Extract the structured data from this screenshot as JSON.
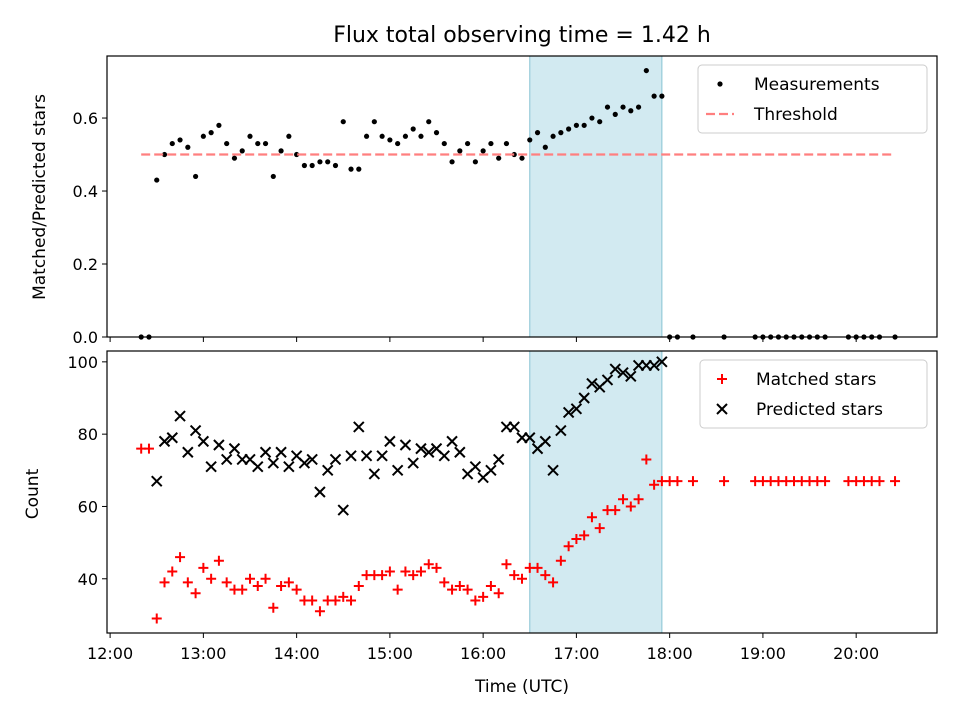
{
  "chart_data": [
    {
      "type": "scatter",
      "title": "Flux total observing time = 1.42 h",
      "xlabel": "",
      "ylabel": "Matched/Predicted stars",
      "xlim": [
        "11:58",
        "20:52"
      ],
      "ylim": [
        0,
        0.77
      ],
      "yticks": [
        0.0,
        0.2,
        0.4,
        0.6
      ],
      "ytick_labels": [
        "0.0",
        "0.2",
        "0.4",
        "0.6"
      ],
      "grid": false,
      "legend_position": "upper right",
      "highlight_span": {
        "start": "16:30",
        "end": "17:55",
        "color": "#add8e6"
      },
      "series": [
        {
          "name": "Measurements",
          "marker": "dot",
          "color": "#000000",
          "points": [
            [
              "12:20",
              0.0
            ],
            [
              "12:25",
              0.0
            ],
            [
              "12:30",
              0.43
            ],
            [
              "12:35",
              0.5
            ],
            [
              "12:40",
              0.53
            ],
            [
              "12:45",
              0.54
            ],
            [
              "12:50",
              0.52
            ],
            [
              "12:55",
              0.44
            ],
            [
              "13:00",
              0.55
            ],
            [
              "13:05",
              0.56
            ],
            [
              "13:10",
              0.58
            ],
            [
              "13:15",
              0.53
            ],
            [
              "13:20",
              0.49
            ],
            [
              "13:25",
              0.51
            ],
            [
              "13:30",
              0.55
            ],
            [
              "13:35",
              0.53
            ],
            [
              "13:40",
              0.53
            ],
            [
              "13:45",
              0.44
            ],
            [
              "13:50",
              0.51
            ],
            [
              "13:55",
              0.55
            ],
            [
              "14:00",
              0.5
            ],
            [
              "14:05",
              0.47
            ],
            [
              "14:10",
              0.47
            ],
            [
              "14:15",
              0.48
            ],
            [
              "14:20",
              0.48
            ],
            [
              "14:25",
              0.47
            ],
            [
              "14:30",
              0.59
            ],
            [
              "14:35",
              0.46
            ],
            [
              "14:40",
              0.46
            ],
            [
              "14:45",
              0.55
            ],
            [
              "14:50",
              0.59
            ],
            [
              "14:55",
              0.55
            ],
            [
              "15:00",
              0.54
            ],
            [
              "15:05",
              0.53
            ],
            [
              "15:10",
              0.55
            ],
            [
              "15:15",
              0.57
            ],
            [
              "15:20",
              0.55
            ],
            [
              "15:25",
              0.59
            ],
            [
              "15:30",
              0.56
            ],
            [
              "15:35",
              0.53
            ],
            [
              "15:40",
              0.48
            ],
            [
              "15:45",
              0.51
            ],
            [
              "15:50",
              0.53
            ],
            [
              "15:55",
              0.48
            ],
            [
              "16:00",
              0.51
            ],
            [
              "16:05",
              0.53
            ],
            [
              "16:10",
              0.49
            ],
            [
              "16:15",
              0.53
            ],
            [
              "16:20",
              0.5
            ],
            [
              "16:25",
              0.49
            ],
            [
              "16:30",
              0.54
            ],
            [
              "16:35",
              0.56
            ],
            [
              "16:40",
              0.52
            ],
            [
              "16:45",
              0.55
            ],
            [
              "16:50",
              0.56
            ],
            [
              "16:55",
              0.57
            ],
            [
              "17:00",
              0.58
            ],
            [
              "17:05",
              0.58
            ],
            [
              "17:10",
              0.6
            ],
            [
              "17:15",
              0.59
            ],
            [
              "17:20",
              0.63
            ],
            [
              "17:25",
              0.61
            ],
            [
              "17:30",
              0.63
            ],
            [
              "17:35",
              0.62
            ],
            [
              "17:40",
              0.63
            ],
            [
              "17:45",
              0.73
            ],
            [
              "17:50",
              0.66
            ],
            [
              "17:55",
              0.66
            ],
            [
              "18:00",
              0.0
            ],
            [
              "18:05",
              0.0
            ],
            [
              "18:15",
              0.0
            ],
            [
              "18:35",
              0.0
            ],
            [
              "18:55",
              0.0
            ],
            [
              "19:00",
              0.0
            ],
            [
              "19:05",
              0.0
            ],
            [
              "19:10",
              0.0
            ],
            [
              "19:15",
              0.0
            ],
            [
              "19:20",
              0.0
            ],
            [
              "19:25",
              0.0
            ],
            [
              "19:30",
              0.0
            ],
            [
              "19:35",
              0.0
            ],
            [
              "19:40",
              0.0
            ],
            [
              "19:55",
              0.0
            ],
            [
              "20:00",
              0.0
            ],
            [
              "20:05",
              0.0
            ],
            [
              "20:10",
              0.0
            ],
            [
              "20:15",
              0.0
            ],
            [
              "20:25",
              0.0
            ]
          ]
        },
        {
          "name": "Threshold",
          "line_style": "dashed",
          "color": "#ff7f7f",
          "points": [
            [
              "12:20",
              0.5
            ],
            [
              "20:25",
              0.5
            ]
          ]
        }
      ]
    },
    {
      "type": "scatter",
      "title": "",
      "xlabel": "Time (UTC)",
      "ylabel": "Count",
      "xlim": [
        "11:58",
        "20:52"
      ],
      "ylim": [
        25,
        103
      ],
      "yticks": [
        40,
        60,
        80,
        100
      ],
      "ytick_labels": [
        "40",
        "60",
        "80",
        "100"
      ],
      "xticks": [
        "12:00",
        "13:00",
        "14:00",
        "15:00",
        "16:00",
        "17:00",
        "18:00",
        "19:00",
        "20:00"
      ],
      "grid": false,
      "legend_position": "upper right",
      "highlight_span": {
        "start": "16:30",
        "end": "17:55",
        "color": "#add8e6"
      },
      "series": [
        {
          "name": "Matched stars",
          "marker": "plus",
          "color": "#ff0000",
          "points": [
            [
              "12:20",
              76
            ],
            [
              "12:25",
              76
            ],
            [
              "12:30",
              29
            ],
            [
              "12:35",
              39
            ],
            [
              "12:40",
              42
            ],
            [
              "12:45",
              46
            ],
            [
              "12:50",
              39
            ],
            [
              "12:55",
              36
            ],
            [
              "13:00",
              43
            ],
            [
              "13:05",
              40
            ],
            [
              "13:10",
              45
            ],
            [
              "13:15",
              39
            ],
            [
              "13:20",
              37
            ],
            [
              "13:25",
              37
            ],
            [
              "13:30",
              40
            ],
            [
              "13:35",
              38
            ],
            [
              "13:40",
              40
            ],
            [
              "13:45",
              32
            ],
            [
              "13:50",
              38
            ],
            [
              "13:55",
              39
            ],
            [
              "14:00",
              37
            ],
            [
              "14:05",
              34
            ],
            [
              "14:10",
              34
            ],
            [
              "14:15",
              31
            ],
            [
              "14:20",
              34
            ],
            [
              "14:25",
              34
            ],
            [
              "14:30",
              35
            ],
            [
              "14:35",
              34
            ],
            [
              "14:40",
              38
            ],
            [
              "14:45",
              41
            ],
            [
              "14:50",
              41
            ],
            [
              "14:55",
              41
            ],
            [
              "15:00",
              42
            ],
            [
              "15:05",
              37
            ],
            [
              "15:10",
              42
            ],
            [
              "15:15",
              41
            ],
            [
              "15:20",
              42
            ],
            [
              "15:25",
              44
            ],
            [
              "15:30",
              43
            ],
            [
              "15:35",
              39
            ],
            [
              "15:40",
              37
            ],
            [
              "15:45",
              38
            ],
            [
              "15:50",
              37
            ],
            [
              "15:55",
              34
            ],
            [
              "16:00",
              35
            ],
            [
              "16:05",
              38
            ],
            [
              "16:10",
              36
            ],
            [
              "16:15",
              44
            ],
            [
              "16:20",
              41
            ],
            [
              "16:25",
              40
            ],
            [
              "16:30",
              43
            ],
            [
              "16:35",
              43
            ],
            [
              "16:40",
              41
            ],
            [
              "16:45",
              39
            ],
            [
              "16:50",
              45
            ],
            [
              "16:55",
              49
            ],
            [
              "17:00",
              51
            ],
            [
              "17:05",
              52
            ],
            [
              "17:10",
              57
            ],
            [
              "17:15",
              54
            ],
            [
              "17:20",
              59
            ],
            [
              "17:25",
              59
            ],
            [
              "17:30",
              62
            ],
            [
              "17:35",
              60
            ],
            [
              "17:40",
              62
            ],
            [
              "17:45",
              73
            ],
            [
              "17:50",
              66
            ],
            [
              "17:55",
              67
            ],
            [
              "18:00",
              67
            ],
            [
              "18:05",
              67
            ],
            [
              "18:15",
              67
            ],
            [
              "18:35",
              67
            ],
            [
              "18:55",
              67
            ],
            [
              "19:00",
              67
            ],
            [
              "19:05",
              67
            ],
            [
              "19:10",
              67
            ],
            [
              "19:15",
              67
            ],
            [
              "19:20",
              67
            ],
            [
              "19:25",
              67
            ],
            [
              "19:30",
              67
            ],
            [
              "19:35",
              67
            ],
            [
              "19:40",
              67
            ],
            [
              "19:55",
              67
            ],
            [
              "20:00",
              67
            ],
            [
              "20:05",
              67
            ],
            [
              "20:10",
              67
            ],
            [
              "20:15",
              67
            ],
            [
              "20:25",
              67
            ]
          ]
        },
        {
          "name": "Predicted stars",
          "marker": "x",
          "color": "#000000",
          "points": [
            [
              "12:30",
              67
            ],
            [
              "12:35",
              78
            ],
            [
              "12:40",
              79
            ],
            [
              "12:45",
              85
            ],
            [
              "12:50",
              75
            ],
            [
              "12:55",
              81
            ],
            [
              "13:00",
              78
            ],
            [
              "13:05",
              71
            ],
            [
              "13:10",
              77
            ],
            [
              "13:15",
              73
            ],
            [
              "13:20",
              76
            ],
            [
              "13:25",
              73
            ],
            [
              "13:30",
              73
            ],
            [
              "13:35",
              71
            ],
            [
              "13:40",
              75
            ],
            [
              "13:45",
              72
            ],
            [
              "13:50",
              75
            ],
            [
              "13:55",
              71
            ],
            [
              "14:00",
              74
            ],
            [
              "14:05",
              72
            ],
            [
              "14:10",
              73
            ],
            [
              "14:15",
              64
            ],
            [
              "14:20",
              70
            ],
            [
              "14:25",
              73
            ],
            [
              "14:30",
              59
            ],
            [
              "14:35",
              74
            ],
            [
              "14:40",
              82
            ],
            [
              "14:45",
              74
            ],
            [
              "14:50",
              69
            ],
            [
              "14:55",
              74
            ],
            [
              "15:00",
              78
            ],
            [
              "15:05",
              70
            ],
            [
              "15:10",
              77
            ],
            [
              "15:15",
              72
            ],
            [
              "15:20",
              76
            ],
            [
              "15:25",
              75
            ],
            [
              "15:30",
              76
            ],
            [
              "15:35",
              74
            ],
            [
              "15:40",
              78
            ],
            [
              "15:45",
              75
            ],
            [
              "15:50",
              69
            ],
            [
              "15:55",
              71
            ],
            [
              "16:00",
              68
            ],
            [
              "16:05",
              70
            ],
            [
              "16:10",
              73
            ],
            [
              "16:15",
              82
            ],
            [
              "16:20",
              82
            ],
            [
              "16:25",
              79
            ],
            [
              "16:30",
              79
            ],
            [
              "16:35",
              76
            ],
            [
              "16:40",
              78
            ],
            [
              "16:45",
              70
            ],
            [
              "16:50",
              81
            ],
            [
              "16:55",
              86
            ],
            [
              "17:00",
              87
            ],
            [
              "17:05",
              90
            ],
            [
              "17:10",
              94
            ],
            [
              "17:15",
              93
            ],
            [
              "17:20",
              95
            ],
            [
              "17:25",
              98
            ],
            [
              "17:30",
              97
            ],
            [
              "17:35",
              96
            ],
            [
              "17:40",
              99
            ],
            [
              "17:45",
              99
            ],
            [
              "17:50",
              99
            ],
            [
              "17:55",
              100
            ]
          ]
        }
      ]
    }
  ]
}
